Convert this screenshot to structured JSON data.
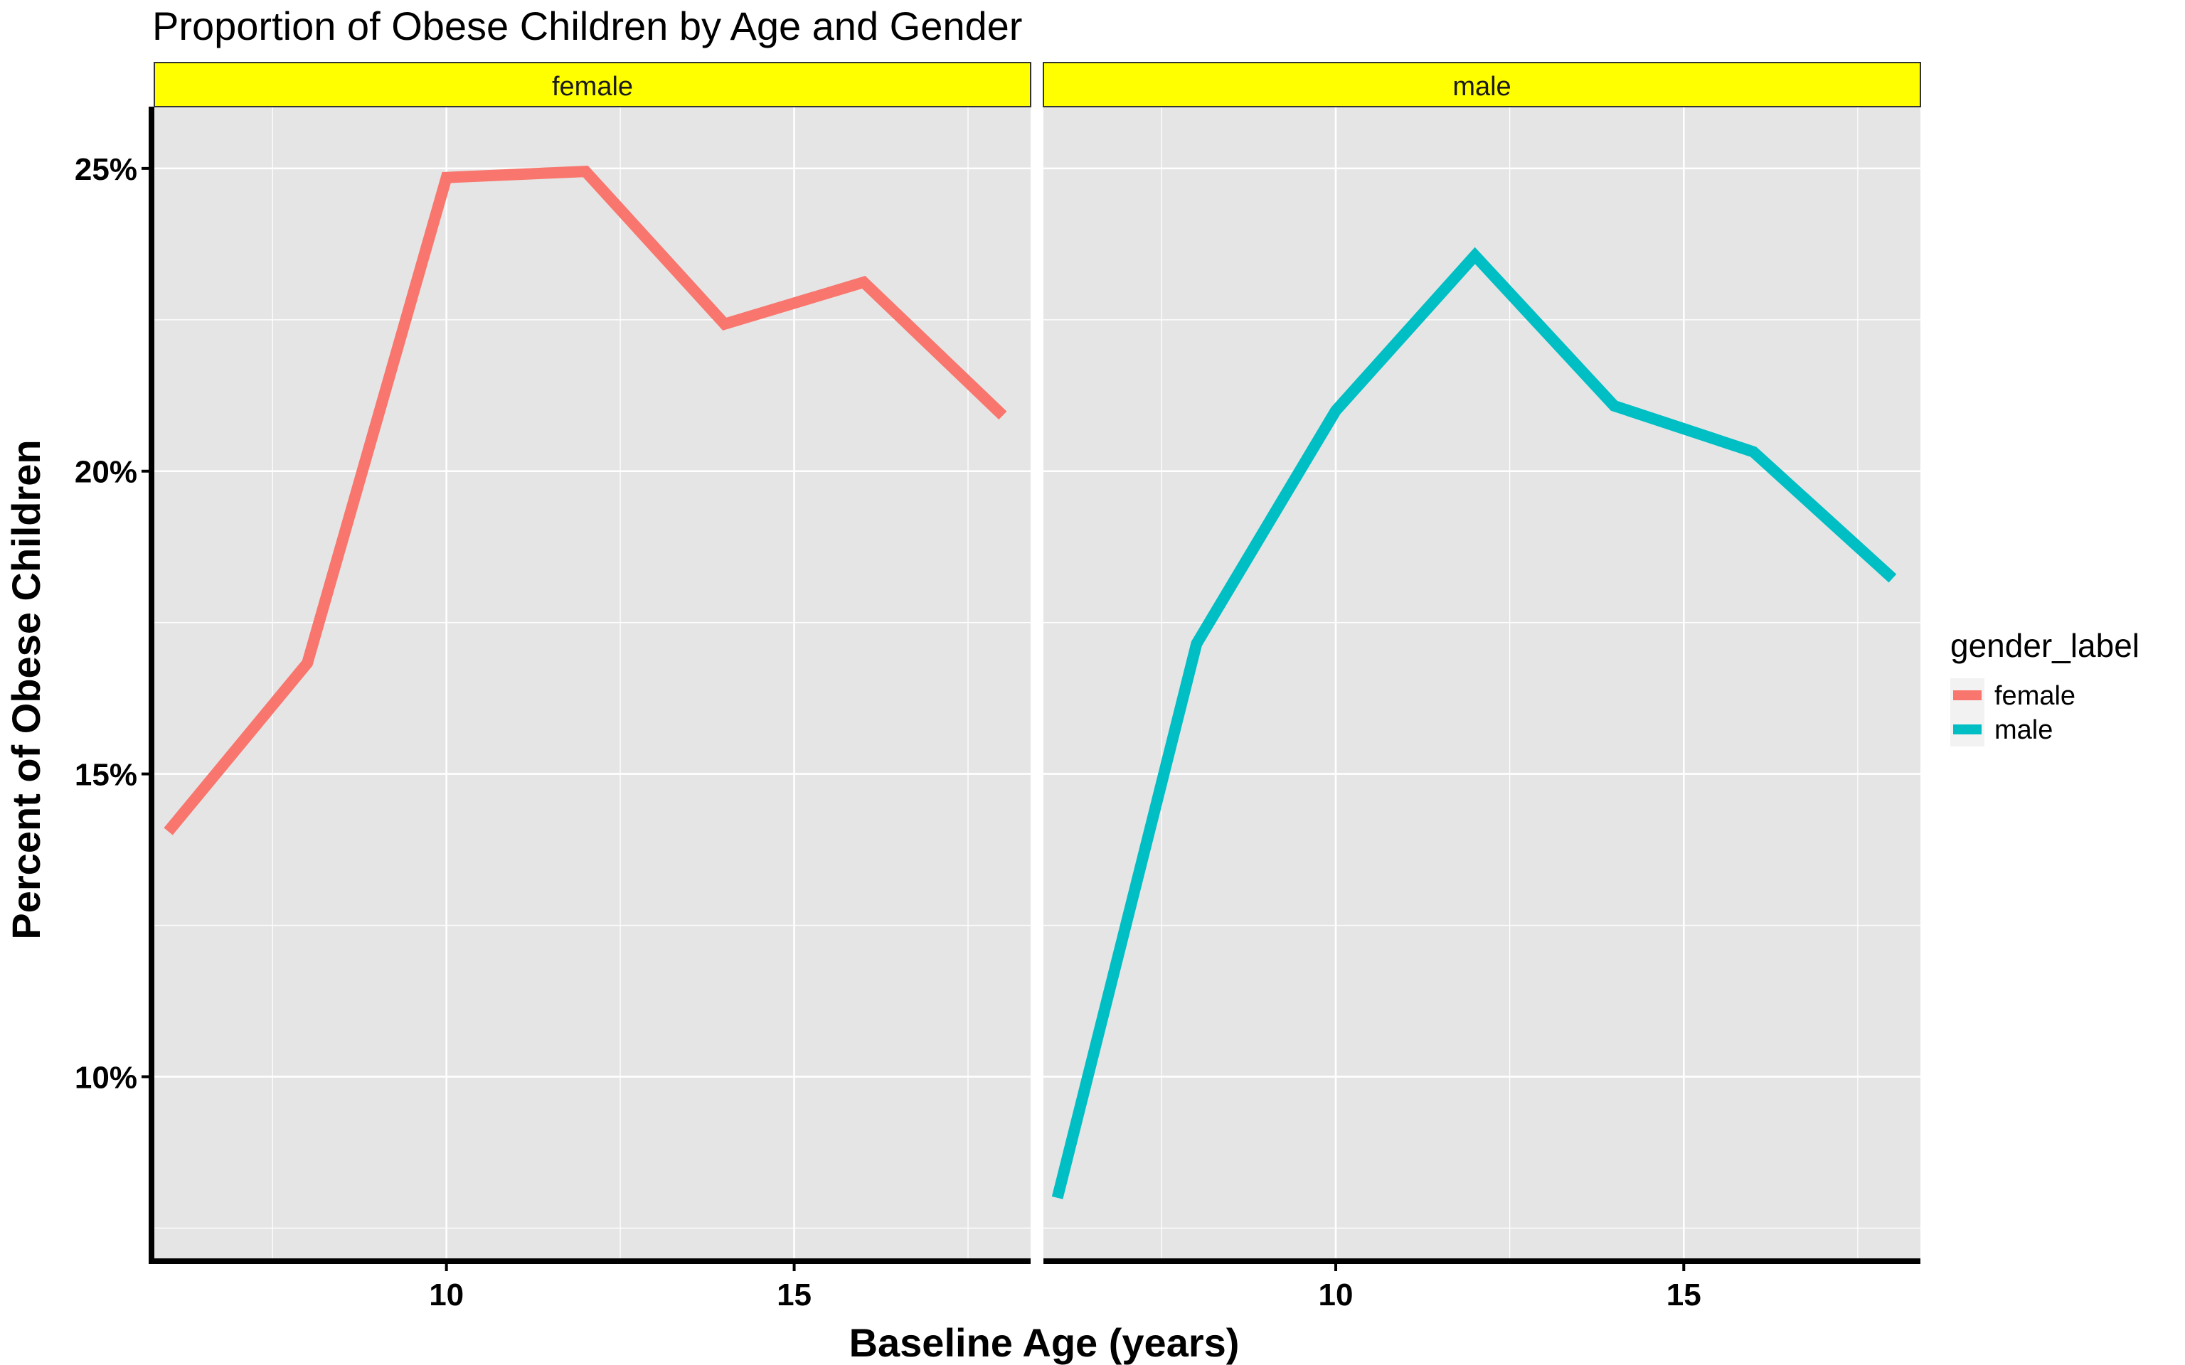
{
  "chart_data": {
    "type": "line",
    "title": "Proportion of Obese Children by Age and Gender",
    "xlabel": "Baseline Age (years)",
    "ylabel": "Percent of Obese Children",
    "facets": [
      "female",
      "male"
    ],
    "x_ticks": [
      10,
      15
    ],
    "x_tick_labels": [
      "10",
      "15"
    ],
    "y_ticks": [
      0.1,
      0.15,
      0.2,
      0.25
    ],
    "y_tick_labels": [
      "10%",
      "15%",
      "20%",
      "25%"
    ],
    "xlim": [
      5.8,
      18.4
    ],
    "ylim": [
      0.07,
      0.2602
    ],
    "grid": true,
    "legend": {
      "title": "gender_label",
      "position": "right"
    },
    "series": [
      {
        "name": "female",
        "facet": "female",
        "color": "#F8766D",
        "x": [
          6,
          8,
          10,
          12,
          14,
          16,
          18
        ],
        "values": [
          0.1405,
          0.1683,
          0.2485,
          0.2495,
          0.2243,
          0.2312,
          0.2092
        ]
      },
      {
        "name": "male",
        "facet": "male",
        "color": "#00BFC4",
        "x": [
          6,
          8,
          10,
          12,
          14,
          16,
          18
        ],
        "values": [
          0.08,
          0.1715,
          0.21,
          0.2356,
          0.2108,
          0.2032,
          0.1823
        ]
      }
    ]
  },
  "colors": {
    "panel_background": "#e5e5e5",
    "grid_major": "#ffffff",
    "strip_background": "#ffff00",
    "axis_line": "#000000"
  }
}
